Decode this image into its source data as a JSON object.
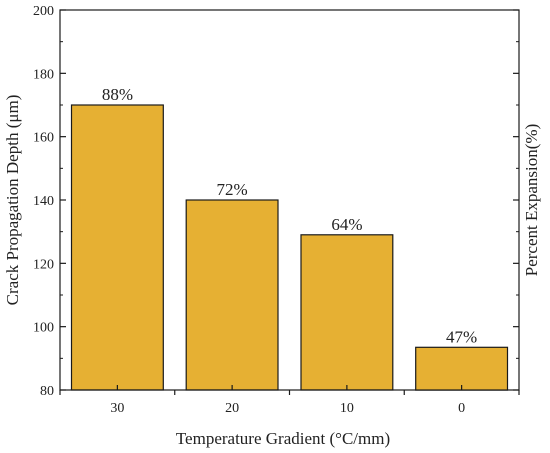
{
  "chart_data": {
    "type": "bar",
    "categories": [
      "30",
      "20",
      "10",
      "0"
    ],
    "values": [
      170,
      140,
      129,
      93.5
    ],
    "data_labels": [
      "88%",
      "72%",
      "64%",
      "47%"
    ],
    "title": "",
    "xlabel": "Temperature Gradient (°C/mm)",
    "ylabel": "Crack Propagation Depth (μm)",
    "y2label": "Percent Expansion(%)",
    "ylim": [
      80,
      200
    ],
    "yticks": [
      "80",
      "100",
      "120",
      "140",
      "160",
      "180",
      "200"
    ],
    "grid": false,
    "legend": "none",
    "bar_color": "#e6b033",
    "bar_edge_color": "#1a1a1a"
  }
}
